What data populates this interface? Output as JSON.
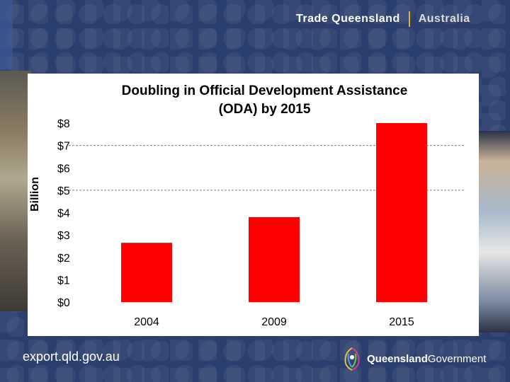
{
  "header": {
    "brand": "Trade Queensland",
    "country": "Australia"
  },
  "footer": {
    "url": "export.qld.gov.au",
    "gov_name_bold": "Queensland",
    "gov_name_rest": "Government"
  },
  "colors": {
    "bar": "#ff0000",
    "background": "#2b3f6e"
  },
  "chart_data": {
    "type": "bar",
    "title_line1": "Doubling in Official Development Assistance",
    "title_line2": "(ODA) by 2015",
    "ylabel": "Billion",
    "xlabel": "",
    "categories": [
      "2004",
      "2009",
      "2015"
    ],
    "values": [
      2.65,
      3.8,
      8.0
    ],
    "ylim": [
      0,
      8
    ],
    "yticks": [
      "$0",
      "$1",
      "$2",
      "$3",
      "$4",
      "$5",
      "$6",
      "$7",
      "$8"
    ],
    "gridlines_at": [
      5,
      7
    ]
  }
}
